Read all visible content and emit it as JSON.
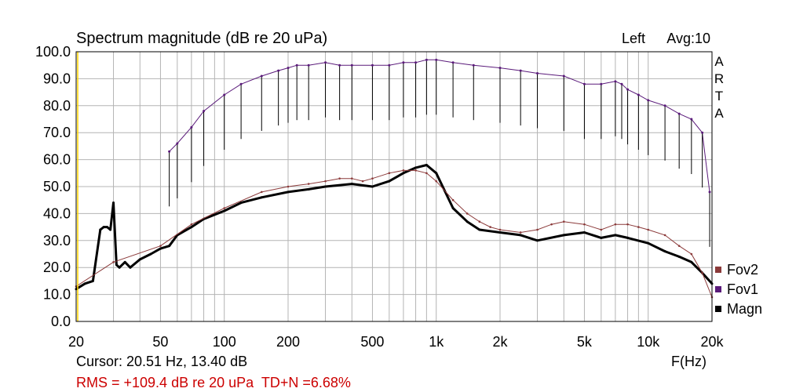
{
  "chart_data": {
    "type": "line",
    "title": "Spectrum magnitude (dB re 20 uPa)",
    "channel_label": "Left",
    "avg_label": "Avg:10",
    "brand_letters": [
      "A",
      "R",
      "T",
      "A"
    ],
    "xlabel": "F(Hz)",
    "ylabel": "",
    "x_scale": "log",
    "xlim": [
      20,
      20000
    ],
    "ylim": [
      0,
      100
    ],
    "grid": true,
    "legend_position": "bottom-right",
    "x_ticks": [
      {
        "value": 20,
        "label": "20"
      },
      {
        "value": 50,
        "label": "50"
      },
      {
        "value": 100,
        "label": "100"
      },
      {
        "value": 200,
        "label": "200"
      },
      {
        "value": 500,
        "label": "500"
      },
      {
        "value": 1000,
        "label": "1k"
      },
      {
        "value": 2000,
        "label": "2k"
      },
      {
        "value": 5000,
        "label": "5k"
      },
      {
        "value": 10000,
        "label": "10k"
      },
      {
        "value": 20000,
        "label": "20k"
      }
    ],
    "y_ticks": [
      {
        "value": 0,
        "label": "0.0"
      },
      {
        "value": 10,
        "label": "10.0"
      },
      {
        "value": 20,
        "label": "20.0"
      },
      {
        "value": 30,
        "label": "30.0"
      },
      {
        "value": 40,
        "label": "40.0"
      },
      {
        "value": 50,
        "label": "50.0"
      },
      {
        "value": 60,
        "label": "60.0"
      },
      {
        "value": 70,
        "label": "70.0"
      },
      {
        "value": 80,
        "label": "80.0"
      },
      {
        "value": 90,
        "label": "90.0"
      },
      {
        "value": 100,
        "label": "100.0"
      }
    ],
    "series": [
      {
        "name": "Fov2",
        "color": "#8b3a3a",
        "x": [
          20,
          30,
          50,
          70,
          100,
          150,
          200,
          250,
          300,
          350,
          400,
          450,
          500,
          600,
          700,
          800,
          900,
          1000,
          1200,
          1400,
          1600,
          1800,
          2000,
          2500,
          3000,
          3500,
          4000,
          5000,
          6000,
          7000,
          8000,
          9000,
          10000,
          12000,
          14000,
          16000,
          18000,
          20000
        ],
        "y": [
          13,
          22,
          28,
          36,
          42,
          48,
          50,
          51,
          52,
          53,
          53,
          52,
          53,
          55,
          56,
          56,
          55,
          52,
          45,
          40,
          37,
          35,
          34,
          33,
          34,
          36,
          37,
          36,
          34,
          36,
          36,
          35,
          34,
          32,
          28,
          25,
          18,
          9
        ]
      },
      {
        "name": "Fov1",
        "color": "#5a1a7a",
        "x": [
          55,
          60,
          70,
          80,
          100,
          120,
          150,
          180,
          200,
          220,
          250,
          300,
          350,
          400,
          500,
          600,
          700,
          800,
          900,
          1000,
          1200,
          1500,
          2000,
          2500,
          3000,
          4000,
          5000,
          6000,
          7000,
          7500,
          8000,
          9000,
          10000,
          12000,
          14000,
          16000,
          18000,
          19500
        ],
        "y": [
          63,
          66,
          72,
          78,
          84,
          88,
          91,
          93,
          94,
          95,
          95,
          96,
          95,
          95,
          95,
          95,
          96,
          96,
          97,
          97,
          96,
          95,
          94,
          93,
          92,
          91,
          88,
          88,
          89,
          88,
          86,
          84,
          82,
          80,
          77,
          75,
          70,
          48
        ]
      },
      {
        "name": "Magn",
        "color": "#000000",
        "x": [
          20,
          22,
          24,
          26,
          27,
          28,
          29,
          30,
          31,
          32,
          34,
          36,
          40,
          45,
          50,
          55,
          60,
          70,
          80,
          100,
          120,
          150,
          200,
          250,
          300,
          400,
          500,
          600,
          700,
          800,
          900,
          1000,
          1200,
          1400,
          1600,
          2000,
          2500,
          3000,
          4000,
          5000,
          6000,
          7000,
          8000,
          10000,
          12000,
          14000,
          16000,
          18000,
          20000
        ],
        "y": [
          12,
          14,
          15,
          34,
          35,
          35,
          34,
          44,
          21,
          20,
          22,
          20,
          23,
          25,
          27,
          28,
          32,
          35,
          38,
          41,
          44,
          46,
          48,
          49,
          50,
          51,
          50,
          52,
          55,
          57,
          58,
          55,
          42,
          37,
          34,
          33,
          32,
          30,
          32,
          33,
          31,
          32,
          31,
          29,
          26,
          24,
          22,
          18,
          14
        ]
      }
    ],
    "cursor_text": "Cursor: 20.51 Hz, 13.40 dB",
    "rms_text": "RMS = +109.4 dB re 20 uPa  TD+N =6.68%"
  }
}
